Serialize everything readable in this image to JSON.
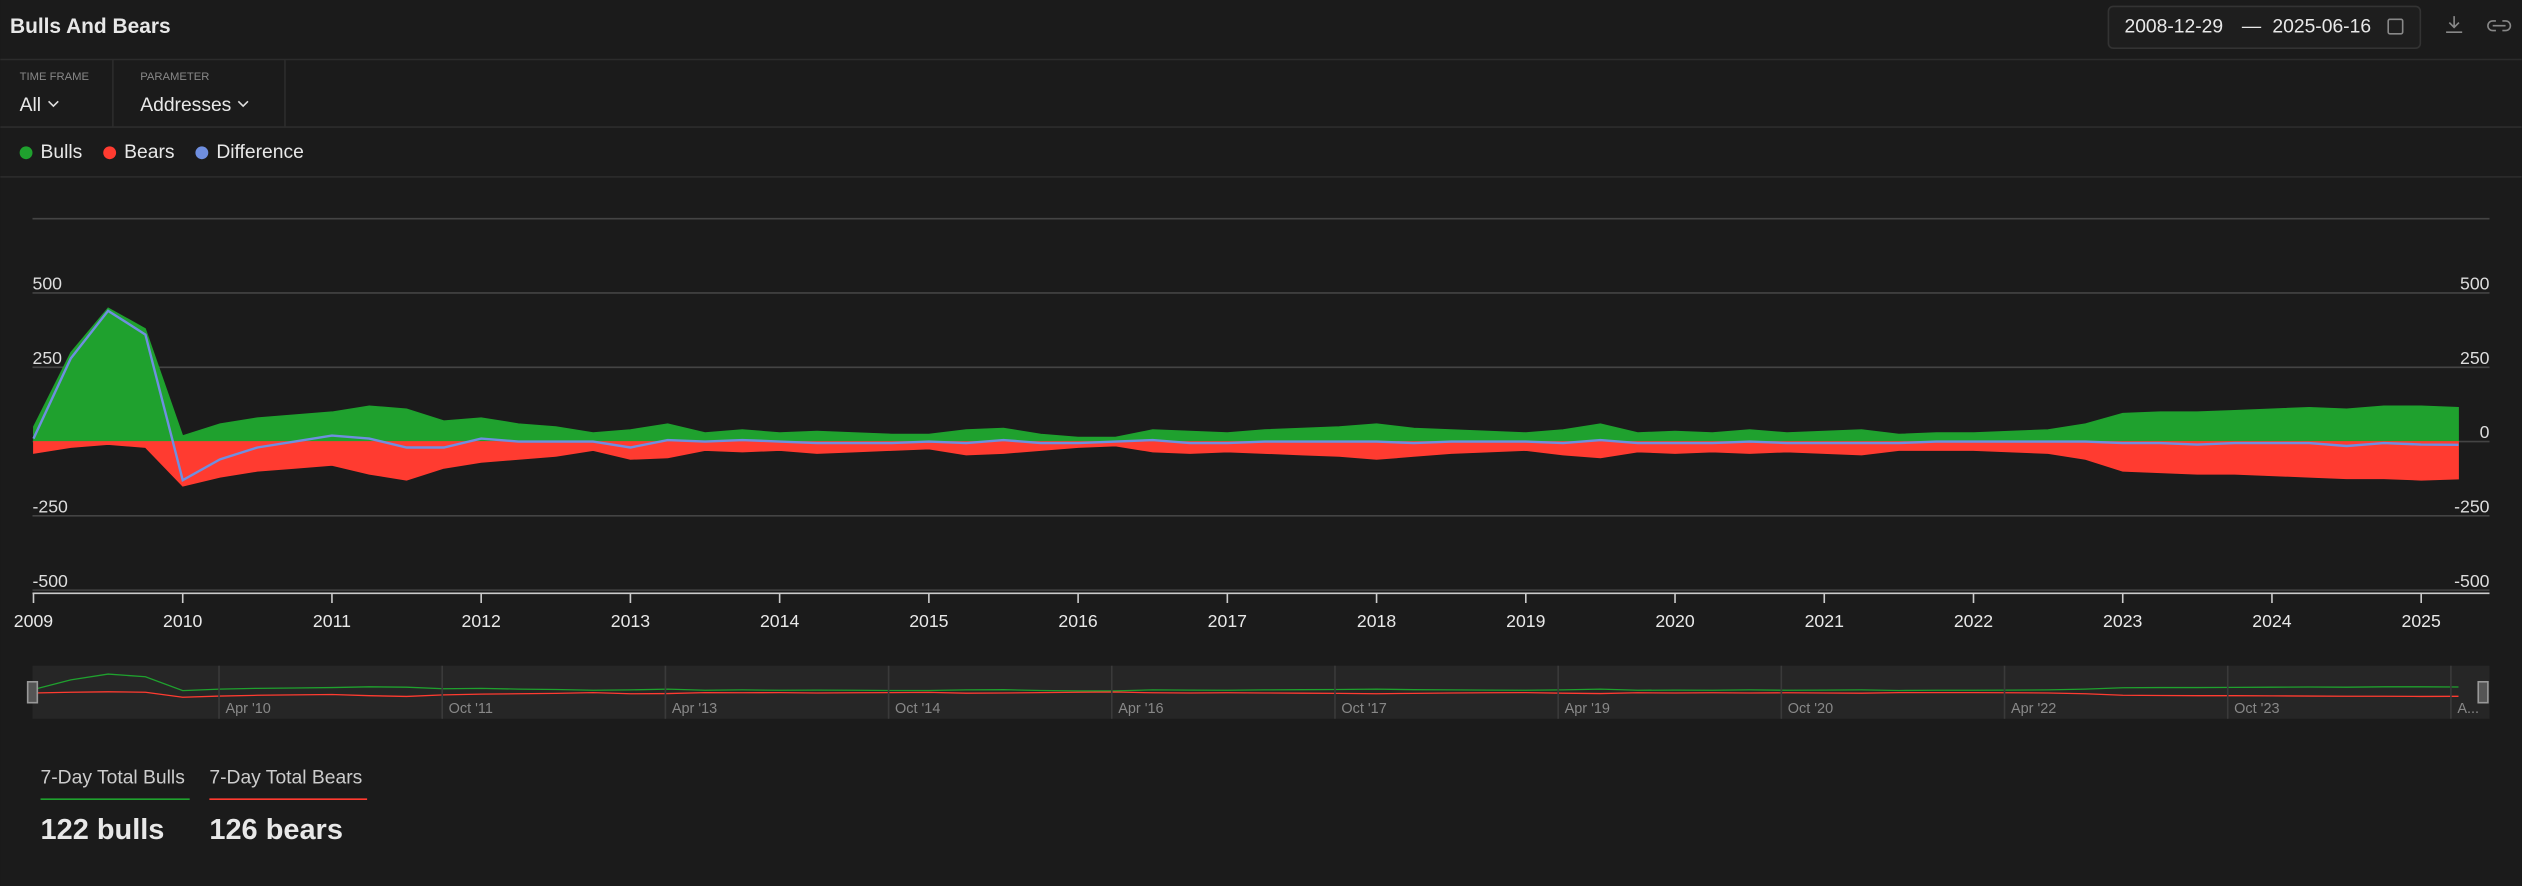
{
  "header": {
    "title": "Bulls And Bears",
    "start_date": "2008-12-29",
    "separator": "—",
    "end_date": "2025-06-16"
  },
  "controls": [
    {
      "label": "TIME FRAME",
      "value": "All"
    },
    {
      "label": "PARAMETER",
      "value": "Addresses"
    }
  ],
  "chart_data": {
    "type": "area",
    "x": [
      "2009-01",
      "2009-04",
      "2009-07",
      "2009-10",
      "2010-01",
      "2010-04",
      "2010-07",
      "2010-10",
      "2011-01",
      "2011-04",
      "2011-07",
      "2011-10",
      "2012-01",
      "2012-04",
      "2012-07",
      "2012-10",
      "2013-01",
      "2013-04",
      "2013-07",
      "2013-10",
      "2014-01",
      "2014-04",
      "2014-07",
      "2014-10",
      "2015-01",
      "2015-04",
      "2015-07",
      "2015-10",
      "2016-01",
      "2016-04",
      "2016-07",
      "2016-10",
      "2017-01",
      "2017-04",
      "2017-07",
      "2017-10",
      "2018-01",
      "2018-04",
      "2018-07",
      "2018-10",
      "2019-01",
      "2019-04",
      "2019-07",
      "2019-10",
      "2020-01",
      "2020-04",
      "2020-07",
      "2020-10",
      "2021-01",
      "2021-04",
      "2021-07",
      "2021-10",
      "2022-01",
      "2022-04",
      "2022-07",
      "2022-10",
      "2023-01",
      "2023-04",
      "2023-07",
      "2023-10",
      "2024-01",
      "2024-04",
      "2024-07",
      "2024-10",
      "2025-01",
      "2025-04"
    ],
    "series": [
      {
        "name": "Bulls",
        "color": "#1fa12e",
        "values": [
          50,
          300,
          450,
          380,
          20,
          60,
          80,
          90,
          100,
          120,
          110,
          70,
          80,
          60,
          50,
          30,
          40,
          60,
          30,
          40,
          30,
          35,
          30,
          25,
          25,
          40,
          45,
          25,
          15,
          15,
          40,
          35,
          30,
          40,
          45,
          50,
          60,
          45,
          40,
          35,
          30,
          40,
          60,
          30,
          35,
          30,
          40,
          30,
          35,
          40,
          25,
          30,
          30,
          35,
          40,
          60,
          95,
          100,
          100,
          105,
          110,
          115,
          110,
          120,
          120,
          115
        ]
      },
      {
        "name": "Bears",
        "color": "#ff3b30",
        "values": [
          -40,
          -20,
          -10,
          -20,
          -150,
          -120,
          -100,
          -90,
          -80,
          -110,
          -130,
          -90,
          -70,
          -60,
          -50,
          -30,
          -60,
          -55,
          -30,
          -35,
          -30,
          -40,
          -35,
          -30,
          -25,
          -45,
          -40,
          -30,
          -20,
          -15,
          -35,
          -40,
          -35,
          -40,
          -45,
          -50,
          -60,
          -50,
          -40,
          -35,
          -30,
          -45,
          -55,
          -35,
          -40,
          -35,
          -40,
          -35,
          -40,
          -45,
          -30,
          -30,
          -30,
          -35,
          -40,
          -60,
          -100,
          -105,
          -110,
          -110,
          -115,
          -120,
          -125,
          -125,
          -130,
          -126
        ]
      },
      {
        "name": "Difference",
        "color": "#6f8fe0",
        "values": [
          10,
          280,
          440,
          360,
          -130,
          -60,
          -20,
          0,
          20,
          10,
          -20,
          -20,
          10,
          0,
          0,
          0,
          -20,
          5,
          0,
          5,
          0,
          -5,
          -5,
          -5,
          0,
          -5,
          5,
          -5,
          -5,
          0,
          5,
          -5,
          -5,
          0,
          0,
          0,
          0,
          -5,
          0,
          0,
          0,
          -5,
          5,
          -5,
          -5,
          -5,
          0,
          -5,
          -5,
          -5,
          -5,
          0,
          0,
          0,
          0,
          0,
          -5,
          -5,
          -10,
          -5,
          -5,
          -5,
          -15,
          -5,
          -10,
          -11
        ]
      }
    ],
    "ylim": [
      -500,
      750
    ],
    "yticks": [
      -500,
      -250,
      0,
      250,
      500
    ],
    "xticks": [
      2009,
      2010,
      2011,
      2012,
      2013,
      2014,
      2015,
      2016,
      2017,
      2018,
      2019,
      2020,
      2021,
      2022,
      2023,
      2024,
      2025
    ],
    "navigator_labels": [
      "Apr '10",
      "Oct '11",
      "Apr '13",
      "Oct '14",
      "Apr '16",
      "Oct '17",
      "Apr '19",
      "Oct '20",
      "Apr '22",
      "Oct '23",
      "A..."
    ]
  },
  "stats": [
    {
      "label": "7-Day Total Bulls",
      "value": "122 bulls"
    },
    {
      "label": "7-Day Total Bears",
      "value": "126 bears"
    }
  ]
}
